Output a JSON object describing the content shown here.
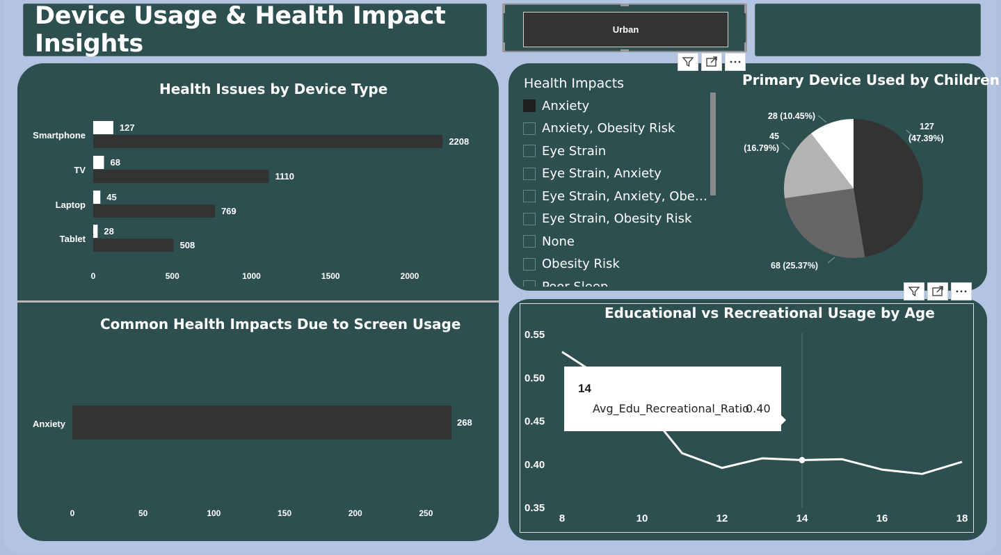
{
  "header": {
    "title": "Device Usage & Health Impact Insights",
    "slicer_value": "Urban"
  },
  "colors": {
    "panel": "#2e4f4f",
    "background": "#b3c4e2",
    "bar_dark": "#333333",
    "bar_light": "#ffffff",
    "pie_1": "#333333",
    "pie_2": "#666666",
    "pie_3": "#b3b3b3",
    "pie_4": "#ffffff"
  },
  "visual_toolbar": {
    "icons": [
      "filter-icon",
      "focus-mode-icon",
      "more-options-icon"
    ]
  },
  "legend": {
    "title": "Health Impacts",
    "items": [
      {
        "label": "Anxiety",
        "selected": true
      },
      {
        "label": "Anxiety, Obesity Risk",
        "selected": false
      },
      {
        "label": "Eye Strain",
        "selected": false
      },
      {
        "label": "Eye Strain, Anxiety",
        "selected": false
      },
      {
        "label": "Eye Strain, Anxiety, Obesity ...",
        "selected": false
      },
      {
        "label": "Eye Strain, Obesity Risk",
        "selected": false
      },
      {
        "label": "None",
        "selected": false
      },
      {
        "label": "Obesity Risk",
        "selected": false
      },
      {
        "label": "Poor Sleep",
        "selected": false
      }
    ]
  },
  "tooltip": {
    "header": "14",
    "key": "Avg_Edu_Recreational_Ratio",
    "value": "0.40"
  },
  "chart_data": [
    {
      "id": "device_bar",
      "type": "bar",
      "orientation": "horizontal",
      "title": "Health Issues by Device Type",
      "categories": [
        "Smartphone",
        "TV",
        "Laptop",
        "Tablet"
      ],
      "series": [
        {
          "color": "#ffffff",
          "values": [
            127,
            68,
            45,
            28
          ]
        },
        {
          "color": "#333333",
          "values": [
            2208,
            1110,
            769,
            508
          ]
        }
      ],
      "xlim": [
        0,
        2250
      ],
      "xticks": [
        "0",
        "500",
        "1000",
        "1500",
        "2000"
      ],
      "xtick_values": [
        0,
        500,
        1000,
        1500,
        2000
      ],
      "data_labels": true,
      "grid": false
    },
    {
      "id": "impact_bar",
      "type": "bar",
      "orientation": "horizontal",
      "title": "Common Health Impacts Due to Screen Usage",
      "categories": [
        "Anxiety"
      ],
      "values": [
        268
      ],
      "xlim": [
        0,
        268
      ],
      "xticks": [
        "0",
        "50",
        "100",
        "150",
        "200",
        "250"
      ],
      "xtick_values": [
        0,
        50,
        100,
        150,
        200,
        250
      ],
      "data_labels": true,
      "grid": false
    },
    {
      "id": "device_pie",
      "type": "pie",
      "title": "Primary Device Used by Children",
      "slices": [
        {
          "value": 127,
          "label": "127",
          "pct": "(47.39%)",
          "color": "#333333"
        },
        {
          "value": 68,
          "label": "68 (25.37%)",
          "pct": "",
          "color": "#666666"
        },
        {
          "value": 45,
          "label": "45",
          "pct": "(16.79%)",
          "color": "#b3b3b3"
        },
        {
          "value": 28,
          "label": "28 (10.45%)",
          "pct": "",
          "color": "#ffffff"
        }
      ]
    },
    {
      "id": "ratio_line",
      "type": "line",
      "title": "Educational vs Recreational Usage by Age",
      "x": [
        8,
        9,
        10,
        11,
        12,
        13,
        14,
        15,
        16,
        17,
        18
      ],
      "y": [
        0.53,
        0.5,
        0.47,
        0.413,
        0.396,
        0.407,
        0.405,
        0.406,
        0.394,
        0.389,
        0.403
      ],
      "xlim": [
        8,
        18
      ],
      "ylim": [
        0.35,
        0.55
      ],
      "xticks": [
        "8",
        "10",
        "12",
        "14",
        "16",
        "18"
      ],
      "yticks": [
        "0.55",
        "0.50",
        "0.45",
        "0.40",
        "0.35"
      ],
      "highlight_x": 14,
      "grid": false
    }
  ]
}
